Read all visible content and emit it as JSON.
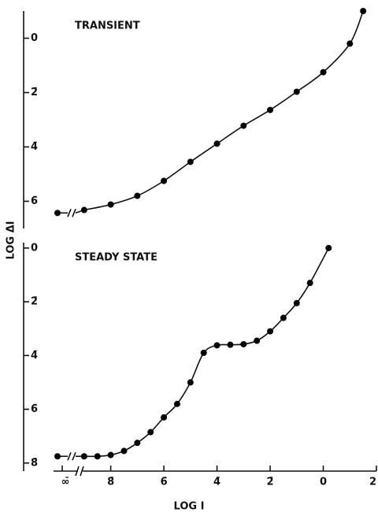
{
  "chart_data": [
    {
      "type": "line",
      "title": "TRANSIENT",
      "ylabel": "LOG ΔI",
      "x": [
        -9,
        -8,
        -7,
        -6,
        -5,
        -4,
        -3,
        -2,
        -1,
        0,
        1,
        1.5
      ],
      "values": [
        -6.32,
        -6.12,
        -5.8,
        -5.25,
        -4.55,
        -3.88,
        -3.22,
        -2.64,
        -1.97,
        -1.25,
        -0.2,
        1.0
      ],
      "minus_infinity_value": -6.43,
      "xlim": [
        -9.5,
        2
      ],
      "ylim": [
        -7,
        1
      ],
      "yticks": [
        0,
        {
          "value": -2,
          "label": "2̄"
        },
        {
          "value": -4,
          "label": "4̄"
        },
        {
          "value": -6,
          "label": "6̄"
        }
      ],
      "color": "#000000"
    },
    {
      "type": "line",
      "title": "STEADY STATE",
      "xlabel": "LOG I",
      "x": [
        -9,
        -8.5,
        -8,
        -7.5,
        -7,
        -6.5,
        -6,
        -5.5,
        -5,
        -4.5,
        -4,
        -3.5,
        -3,
        -2.5,
        -2,
        -1.5,
        -1,
        -0.5,
        0.2
      ],
      "values": [
        -7.75,
        -7.75,
        -7.7,
        -7.55,
        -7.25,
        -6.85,
        -6.3,
        -5.8,
        -5.0,
        -3.9,
        -3.62,
        -3.6,
        -3.58,
        -3.45,
        -3.1,
        -2.6,
        -2.05,
        -1.3,
        0
      ],
      "minus_infinity_value": -7.75,
      "minus_infinity_label": "∞̄",
      "xlim": [
        -9.5,
        2
      ],
      "xticks": [
        {
          "value": -8,
          "label": "8̄"
        },
        {
          "value": -6,
          "label": "6̄"
        },
        {
          "value": -4,
          "label": "4̄"
        },
        {
          "value": -2,
          "label": "2̄"
        },
        0,
        2
      ],
      "ylim": [
        -8.3,
        0.2
      ],
      "yticks": [
        0,
        {
          "value": -2,
          "label": "2̄"
        },
        {
          "value": -4,
          "label": "4̄"
        },
        {
          "value": -6,
          "label": "6̄"
        },
        {
          "value": -8,
          "label": "8̄"
        }
      ],
      "color": "#000000"
    }
  ]
}
